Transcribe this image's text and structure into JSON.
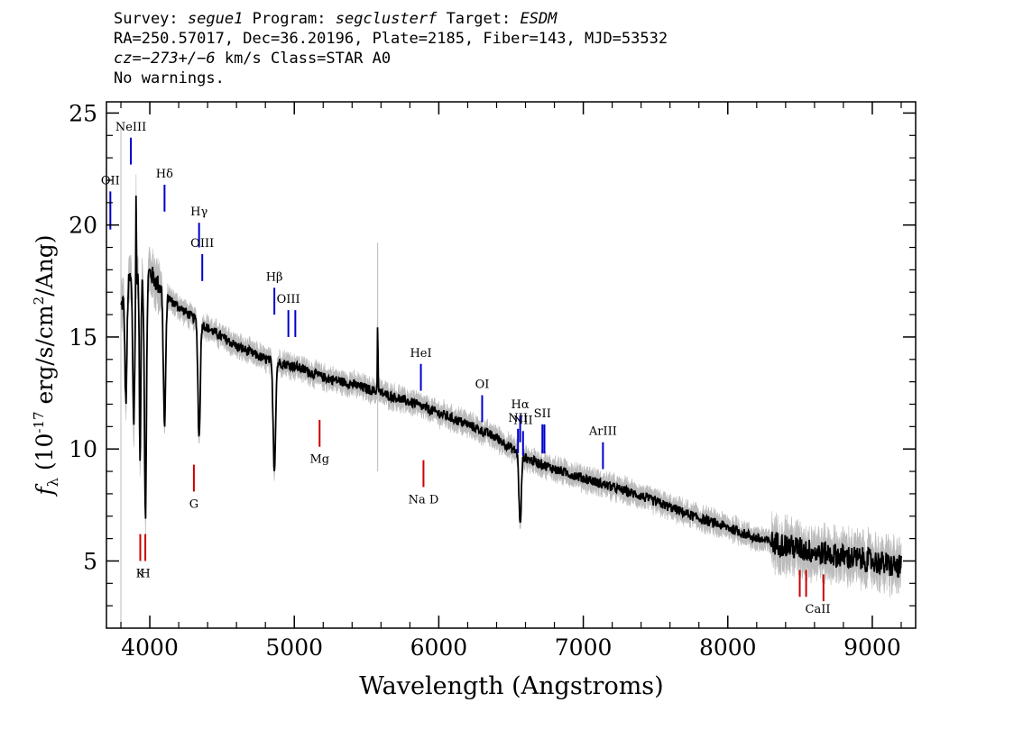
{
  "header": {
    "survey_label": "Survey:",
    "survey": "segue1",
    "program_label": "Program:",
    "program": "segclusterf",
    "target_label": "Target:",
    "target": "ESDM",
    "line2": "RA=250.57017, Dec=36.20196, Plate=2185, Fiber=143, MJD=53532",
    "cz": "cz=−273+/−6",
    "cz_rest": " km/s Class=STAR A0",
    "line4": "No warnings."
  },
  "chart_data": {
    "type": "line",
    "xlabel": "Wavelength (Angstroms)",
    "ylabel": "fλ (10⁻¹⁷ erg/s/cm²/Ang)",
    "xlim": [
      3700,
      9300
    ],
    "ylim": [
      2,
      25.5
    ],
    "x_ticks": [
      4000,
      5000,
      6000,
      7000,
      8000,
      9000
    ],
    "x_tick_labels": [
      "4000",
      "5000",
      "6000",
      "7000",
      "8000",
      "9000"
    ],
    "y_ticks": [
      5,
      10,
      15,
      20,
      25
    ],
    "y_tick_labels": [
      "5",
      "10",
      "15",
      "20",
      "25"
    ],
    "continuum": [
      [
        3800,
        16.3
      ],
      [
        3850,
        17.5
      ],
      [
        3900,
        17.8
      ],
      [
        3950,
        17.6
      ],
      [
        4000,
        17.9
      ],
      [
        4050,
        17.4
      ],
      [
        4150,
        16.6
      ],
      [
        4250,
        16.1
      ],
      [
        4400,
        15.4
      ],
      [
        4600,
        14.6
      ],
      [
        4800,
        14.0
      ],
      [
        5000,
        13.7
      ],
      [
        5200,
        13.2
      ],
      [
        5400,
        12.9
      ],
      [
        5600,
        12.5
      ],
      [
        5800,
        12.1
      ],
      [
        6000,
        11.6
      ],
      [
        6200,
        11.1
      ],
      [
        6400,
        10.5
      ],
      [
        6600,
        9.6
      ],
      [
        6800,
        9.1
      ],
      [
        7000,
        8.7
      ],
      [
        7200,
        8.3
      ],
      [
        7400,
        7.9
      ],
      [
        7600,
        7.4
      ],
      [
        7800,
        6.9
      ],
      [
        8000,
        6.5
      ],
      [
        8200,
        6.0
      ],
      [
        8400,
        5.7
      ],
      [
        8600,
        5.4
      ],
      [
        8800,
        5.2
      ],
      [
        9000,
        5.0
      ],
      [
        9200,
        4.7
      ]
    ],
    "absorption": [
      {
        "wave": 3835,
        "depth": 5.0,
        "width": 10
      },
      {
        "wave": 3889,
        "depth": 6.5,
        "width": 10
      },
      {
        "wave": 3933,
        "depth": 8.5,
        "width": 7
      },
      {
        "wave": 3970,
        "depth": 10.5,
        "width": 10
      },
      {
        "wave": 4102,
        "depth": 6.0,
        "width": 11
      },
      {
        "wave": 4341,
        "depth": 5.2,
        "width": 11
      },
      {
        "wave": 4862,
        "depth": 4.8,
        "width": 12
      },
      {
        "wave": 6563,
        "depth": 3.2,
        "width": 11
      }
    ],
    "spikes": [
      {
        "wave": 3905,
        "height": 4.0
      },
      {
        "wave": 5577,
        "height": 3.2
      }
    ],
    "emission_lines": [
      {
        "label": "NeIII",
        "wave": 3869,
        "y_top": 23.9,
        "y_bottom": 22.7,
        "color": "#0000cc"
      },
      {
        "label": "OII",
        "wave": 3727,
        "y_top": 21.5,
        "y_bottom": 19.8,
        "color": "#0000cc"
      },
      {
        "label": "Hδ",
        "wave": 4102,
        "y_top": 21.8,
        "y_bottom": 20.6,
        "color": "#0000cc"
      },
      {
        "label": "Hγ",
        "wave": 4341,
        "y_top": 20.1,
        "y_bottom": 19.0,
        "color": "#0000cc"
      },
      {
        "label": "OIII",
        "wave": 4363,
        "y_top": 18.7,
        "y_bottom": 17.5,
        "color": "#0000cc"
      },
      {
        "label": "Hβ",
        "wave": 4862,
        "y_top": 17.2,
        "y_bottom": 16.0,
        "color": "#0000cc"
      },
      {
        "label": "OIII",
        "wave": 4959,
        "y_top": 16.2,
        "y_bottom": 15.0,
        "color": "#0000cc"
      },
      {
        "label": "",
        "wave": 5007,
        "y_top": 16.2,
        "y_bottom": 15.0,
        "color": "#0000cc"
      },
      {
        "label": "HeI",
        "wave": 5876,
        "y_top": 13.8,
        "y_bottom": 12.6,
        "color": "#0000cc"
      },
      {
        "label": "OI",
        "wave": 6300,
        "y_top": 12.4,
        "y_bottom": 11.2,
        "color": "#0000cc"
      },
      {
        "label": "NII",
        "wave": 6548,
        "y_top": 10.9,
        "y_bottom": 9.8,
        "color": "#0000cc"
      },
      {
        "label": "Hα",
        "wave": 6563,
        "y_top": 11.5,
        "y_bottom": 10.3,
        "color": "#0000cc"
      },
      {
        "label": "NII",
        "wave": 6583,
        "y_top": 10.8,
        "y_bottom": 9.7,
        "color": "#0000cc"
      },
      {
        "label": "SII",
        "wave": 6717,
        "y_top": 11.1,
        "y_bottom": 9.8,
        "color": "#0000cc"
      },
      {
        "label": "",
        "wave": 6731,
        "y_top": 11.1,
        "y_bottom": 9.8,
        "color": "#0000cc"
      },
      {
        "label": "ArIII",
        "wave": 7136,
        "y_top": 10.3,
        "y_bottom": 9.1,
        "color": "#0000cc"
      }
    ],
    "absorption_lines": [
      {
        "label": "K",
        "wave": 3934,
        "y_top": 6.2,
        "y_bottom": 5.0,
        "color": "#cc0000"
      },
      {
        "label": "H",
        "wave": 3969,
        "y_top": 6.2,
        "y_bottom": 5.0,
        "color": "#cc0000"
      },
      {
        "label": "G",
        "wave": 4305,
        "y_top": 9.3,
        "y_bottom": 8.1,
        "color": "#cc0000"
      },
      {
        "label": "Mg",
        "wave": 5175,
        "y_top": 11.3,
        "y_bottom": 10.1,
        "color": "#cc0000"
      },
      {
        "label": "Na D",
        "wave": 5894,
        "y_top": 9.5,
        "y_bottom": 8.3,
        "color": "#cc0000"
      },
      {
        "label": "CaII",
        "wave": 8498,
        "y_top": 4.6,
        "y_bottom": 3.4,
        "color": "#cc0000"
      },
      {
        "label": "",
        "wave": 8542,
        "y_top": 4.6,
        "y_bottom": 3.4,
        "color": "#cc0000"
      },
      {
        "label": "",
        "wave": 8662,
        "y_top": 4.4,
        "y_bottom": 3.2,
        "color": "#cc0000"
      }
    ],
    "colors": {
      "spectrum": "#000000",
      "error": "#bbbbbb",
      "emission": "#0000cc",
      "absorption": "#cc0000"
    },
    "grid": false
  }
}
